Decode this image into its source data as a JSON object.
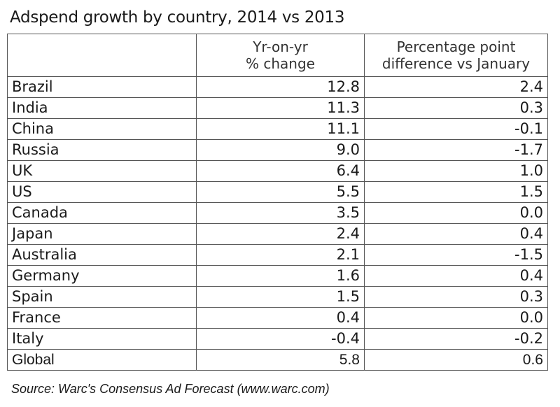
{
  "chart_data": {
    "type": "table",
    "title": "Adspend growth by country, 2014 vs 2013",
    "columns": [
      "",
      "Yr-on-yr\n% change",
      "Percentage point\ndifference vs January"
    ],
    "column_header_lines": [
      [],
      [
        "Yr-on-yr",
        "% change"
      ],
      [
        "Percentage point",
        "difference vs January"
      ]
    ],
    "rows": [
      {
        "country": "Brazil",
        "yoy": "12.8",
        "diff": "2.4"
      },
      {
        "country": "India",
        "yoy": "11.3",
        "diff": "0.3"
      },
      {
        "country": "China",
        "yoy": "11.1",
        "diff": "-0.1"
      },
      {
        "country": "Russia",
        "yoy": "9.0",
        "diff": "-1.7"
      },
      {
        "country": "UK",
        "yoy": "6.4",
        "diff": "1.0"
      },
      {
        "country": "US",
        "yoy": "5.5",
        "diff": "1.5"
      },
      {
        "country": "Canada",
        "yoy": "3.5",
        "diff": "0.0"
      },
      {
        "country": "Japan",
        "yoy": "2.4",
        "diff": "0.4"
      },
      {
        "country": "Australia",
        "yoy": "2.1",
        "diff": "-1.5"
      },
      {
        "country": "Germany",
        "yoy": "1.6",
        "diff": "0.4"
      },
      {
        "country": "Spain",
        "yoy": "1.5",
        "diff": "0.3"
      },
      {
        "country": "France",
        "yoy": "0.4",
        "diff": "0.0"
      },
      {
        "country": "Italy",
        "yoy": "-0.4",
        "diff": "-0.2"
      }
    ],
    "total": {
      "country": "Global",
      "yoy": "5.8",
      "diff": "0.6"
    },
    "source": "Source: Warc's Consensus Ad Forecast (www.warc.com)"
  }
}
